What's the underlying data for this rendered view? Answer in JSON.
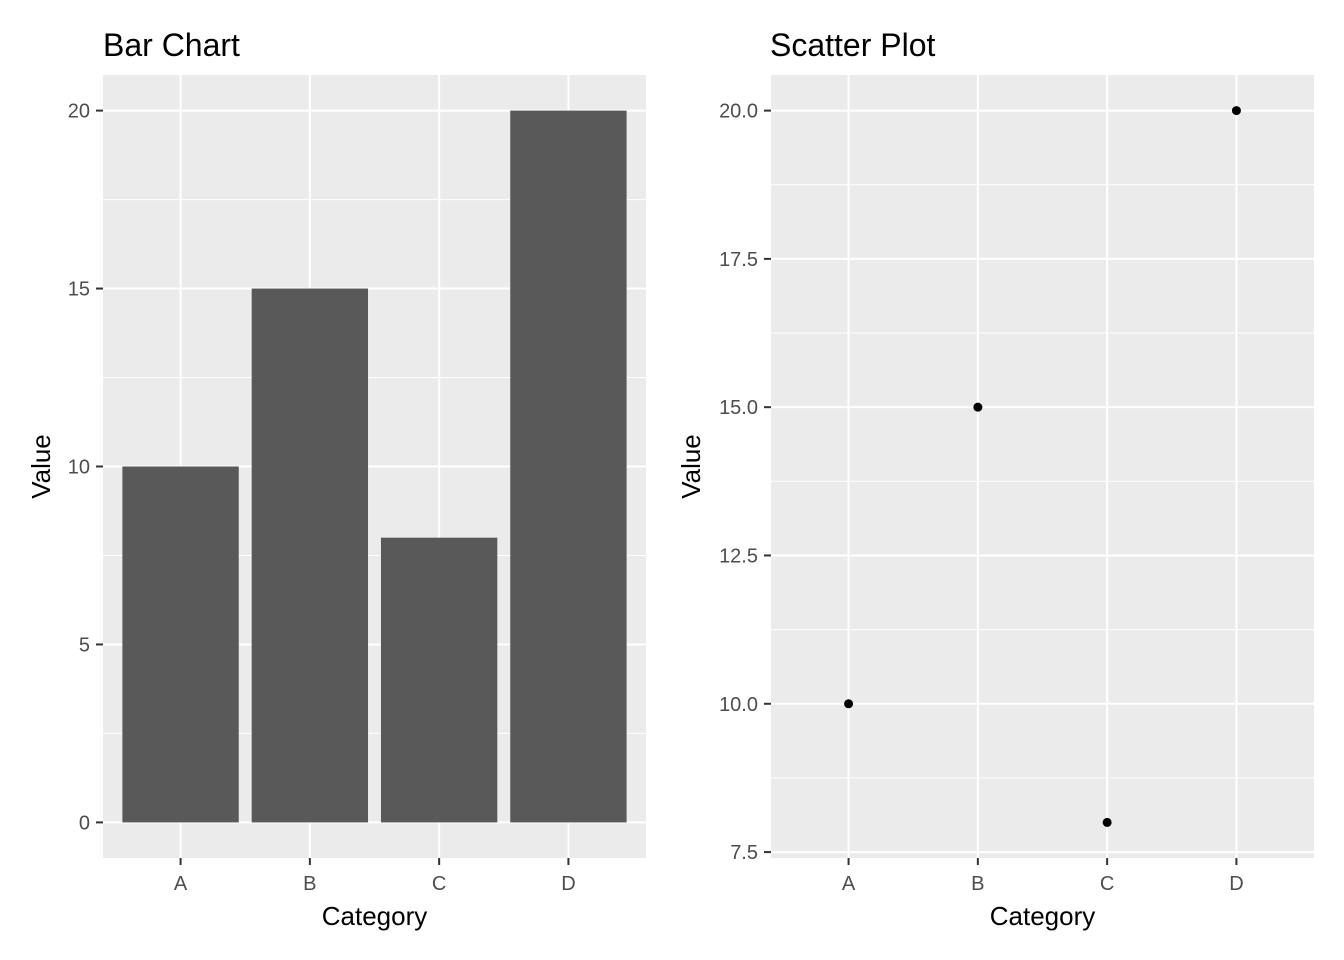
{
  "chart_data": [
    {
      "type": "bar",
      "title": "Bar Chart",
      "xlabel": "Category",
      "ylabel": "Value",
      "categories": [
        "A",
        "B",
        "C",
        "D"
      ],
      "values": [
        10,
        15,
        8,
        20
      ],
      "ylim": [
        -1,
        21
      ],
      "yticks": [
        0,
        5,
        10,
        15,
        20
      ],
      "ytick_labels": [
        "0",
        "5",
        "10",
        "15",
        "20"
      ],
      "grid": true,
      "bar_color": "#595959",
      "panel_color": "#ebebeb",
      "grid_color": "#ffffff"
    },
    {
      "type": "scatter",
      "title": "Scatter Plot",
      "xlabel": "Category",
      "ylabel": "Value",
      "categories": [
        "A",
        "B",
        "C",
        "D"
      ],
      "values": [
        10,
        15,
        8,
        20
      ],
      "ylim": [
        7.4,
        20.6
      ],
      "yticks": [
        7.5,
        10,
        12.5,
        15,
        17.5,
        20
      ],
      "ytick_labels": [
        "7.5",
        "10.0",
        "12.5",
        "15.0",
        "17.5",
        "20.0"
      ],
      "grid": true,
      "point_color": "#000000",
      "panel_color": "#ebebeb",
      "grid_color": "#ffffff"
    }
  ]
}
